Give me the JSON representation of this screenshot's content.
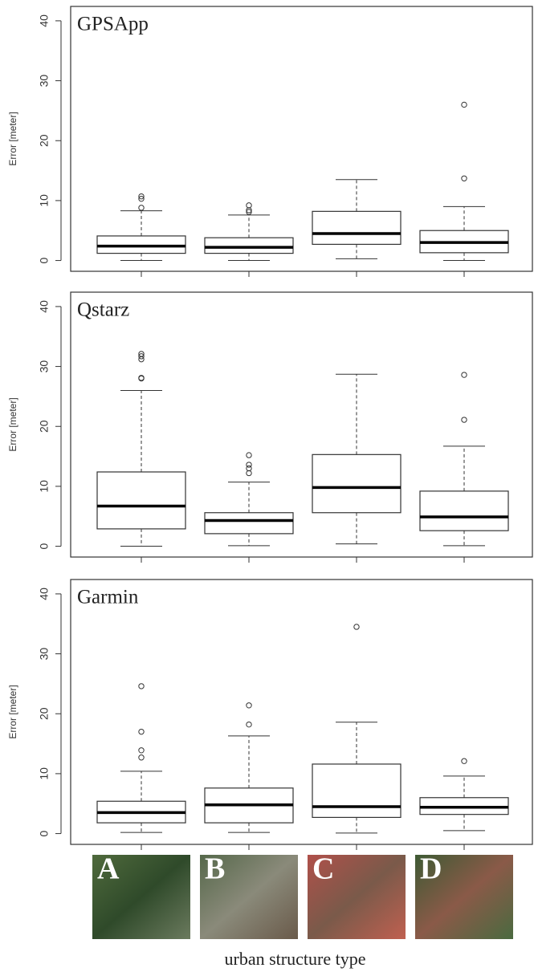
{
  "chart_data": [
    {
      "type": "box",
      "title": "GPSApp",
      "y_label": "Error [meter]",
      "ylim": [
        -1.8,
        42.4
      ],
      "yticks": [
        0,
        10,
        20,
        30,
        40
      ],
      "boxes": [
        {
          "whislo": 0,
          "q1": 1.2,
          "med": 2.4,
          "q3": 4.1,
          "whishi": 8.3,
          "fliers": [
            8.8,
            10.3,
            10.7
          ]
        },
        {
          "whislo": 0,
          "q1": 1.2,
          "med": 2.2,
          "q3": 3.8,
          "whishi": 7.6,
          "fliers": [
            8.1,
            8.4,
            9.2
          ]
        },
        {
          "whislo": 0.3,
          "q1": 2.7,
          "med": 4.5,
          "q3": 8.2,
          "whishi": 13.5,
          "fliers": []
        },
        {
          "whislo": 0,
          "q1": 1.3,
          "med": 3.0,
          "q3": 5.0,
          "whishi": 9.0,
          "fliers": [
            13.7,
            26.0
          ]
        }
      ]
    },
    {
      "type": "box",
      "title": "Qstarz",
      "y_label": "Error [meter]",
      "ylim": [
        -1.8,
        42.4
      ],
      "yticks": [
        0,
        10,
        20,
        30,
        40
      ],
      "boxes": [
        {
          "whislo": 0,
          "q1": 2.9,
          "med": 6.7,
          "q3": 12.4,
          "whishi": 26.0,
          "fliers": [
            28.0,
            28.1,
            31.2,
            31.7,
            32.1
          ]
        },
        {
          "whislo": 0.1,
          "q1": 2.1,
          "med": 4.3,
          "q3": 5.6,
          "whishi": 10.7,
          "fliers": [
            12.2,
            13.0,
            13.6,
            15.2
          ]
        },
        {
          "whislo": 0.4,
          "q1": 5.6,
          "med": 9.8,
          "q3": 15.3,
          "whishi": 28.7,
          "fliers": []
        },
        {
          "whislo": 0.1,
          "q1": 2.6,
          "med": 4.9,
          "q3": 9.2,
          "whishi": 16.7,
          "fliers": [
            21.1,
            28.6
          ]
        }
      ]
    },
    {
      "type": "box",
      "title": "Garmin",
      "y_label": "Error [meter]",
      "ylim": [
        -1.8,
        42.4
      ],
      "yticks": [
        0,
        10,
        20,
        30,
        40
      ],
      "x_label": "urban structure type",
      "categories": [
        "A",
        "B",
        "C",
        "D"
      ],
      "boxes": [
        {
          "whislo": 0.2,
          "q1": 1.8,
          "med": 3.5,
          "q3": 5.4,
          "whishi": 10.4,
          "fliers": [
            12.7,
            13.9,
            17.0,
            24.6
          ]
        },
        {
          "whislo": 0.2,
          "q1": 1.8,
          "med": 4.8,
          "q3": 7.6,
          "whishi": 16.3,
          "fliers": [
            18.2,
            21.4
          ]
        },
        {
          "whislo": 0.1,
          "q1": 2.7,
          "med": 4.5,
          "q3": 11.6,
          "whishi": 18.6,
          "fliers": [
            34.5
          ]
        },
        {
          "whislo": 0.5,
          "q1": 3.2,
          "med": 4.4,
          "q3": 6.0,
          "whishi": 9.6,
          "fliers": [
            12.1
          ]
        }
      ]
    }
  ]
}
